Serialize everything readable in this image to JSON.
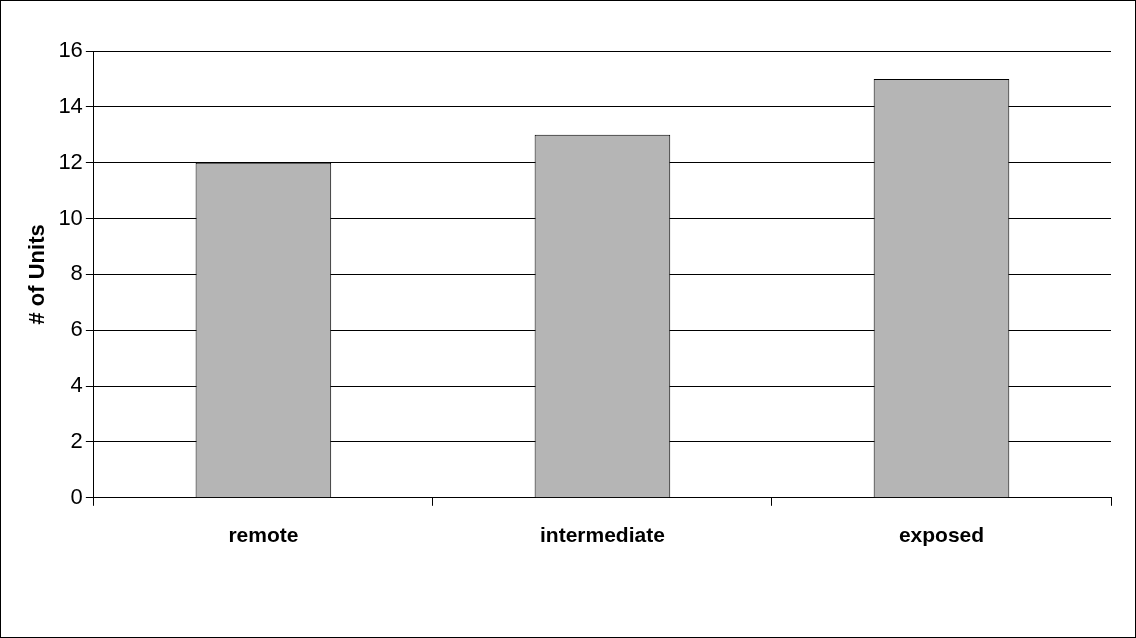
{
  "chart_data": {
    "type": "bar",
    "ylabel": "# of Units",
    "categories": [
      "remote",
      "intermediate",
      "exposed"
    ],
    "values": [
      12,
      13,
      15
    ],
    "color": "#b5b5b5",
    "ylim": [
      0,
      16
    ],
    "yticks": [
      0,
      2,
      4,
      6,
      8,
      10,
      12,
      14,
      16
    ],
    "grid": "y"
  }
}
